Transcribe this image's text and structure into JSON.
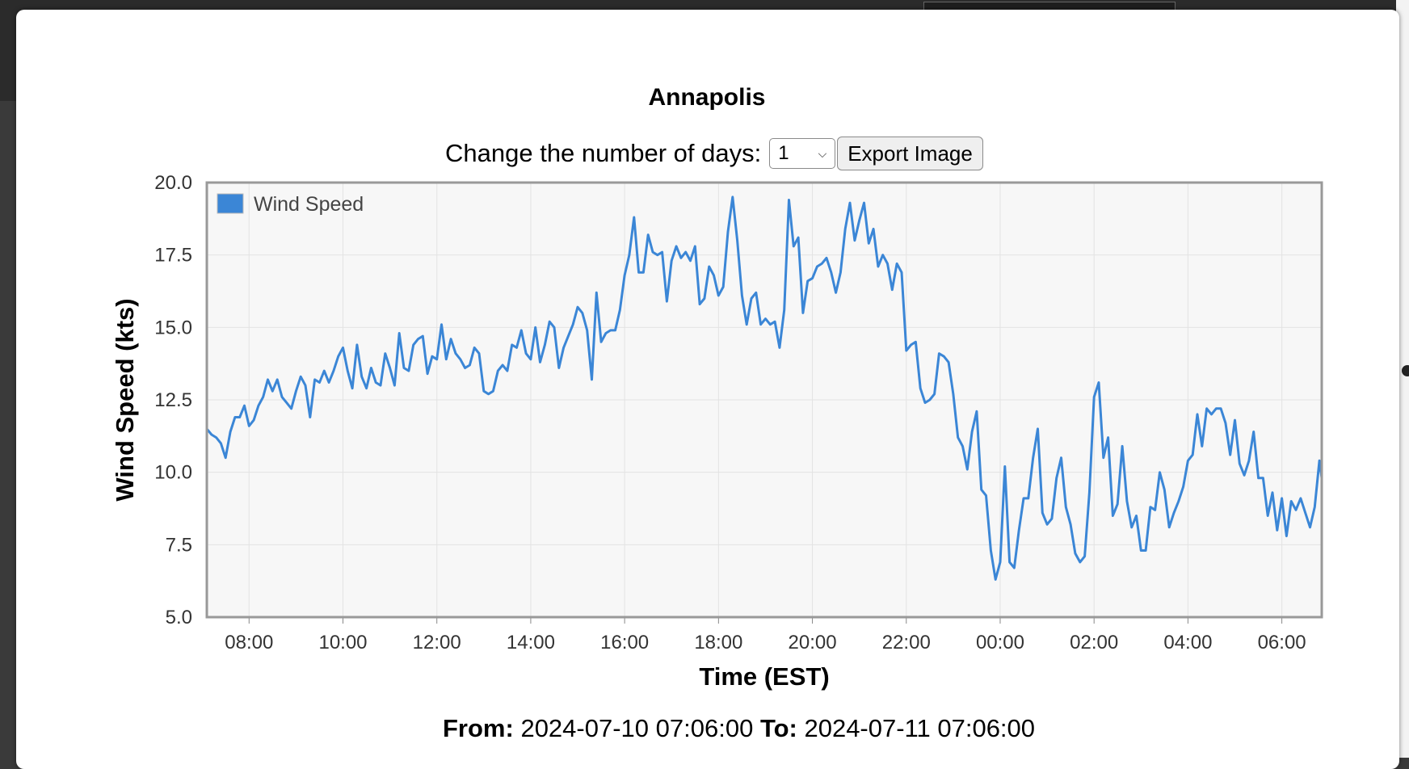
{
  "title": "Annapolis",
  "controls": {
    "days_label": "Change the number of days:",
    "days_value": "1",
    "export_label": "Export Image"
  },
  "range": {
    "from_label": "From:",
    "from_value": "2024-07-10 07:06:00",
    "to_label": "To:",
    "to_value": "2024-07-11 07:06:00"
  },
  "colors": {
    "series": "#3b86d6",
    "plot_bg": "#f7f7f7",
    "frame": "#999999"
  },
  "chart_data": {
    "type": "line",
    "xlabel": "Time (EST)",
    "ylabel": "Wind Speed (kts)",
    "ylim": [
      5.0,
      20.0
    ],
    "yticks": [
      "5.0",
      "7.5",
      "10.0",
      "12.5",
      "15.0",
      "17.5",
      "20.0"
    ],
    "xlim": [
      "07:06",
      "06:51"
    ],
    "xticks": [
      "08:00",
      "10:00",
      "12:00",
      "14:00",
      "16:00",
      "18:00",
      "20:00",
      "22:00",
      "00:00",
      "02:00",
      "04:00",
      "06:00"
    ],
    "grid": true,
    "legend_position": "top-left",
    "series": [
      {
        "name": "Wind Speed",
        "color": "#3b86d6",
        "x": [
          "07:06",
          "07:12",
          "07:18",
          "07:24",
          "07:30",
          "07:36",
          "07:42",
          "07:48",
          "07:54",
          "08:00",
          "08:06",
          "08:12",
          "08:18",
          "08:24",
          "08:30",
          "08:36",
          "08:42",
          "08:48",
          "08:54",
          "09:00",
          "09:06",
          "09:12",
          "09:18",
          "09:24",
          "09:30",
          "09:36",
          "09:42",
          "09:48",
          "09:54",
          "10:00",
          "10:06",
          "10:12",
          "10:18",
          "10:24",
          "10:30",
          "10:36",
          "10:42",
          "10:48",
          "10:54",
          "11:00",
          "11:06",
          "11:12",
          "11:18",
          "11:24",
          "11:30",
          "11:36",
          "11:42",
          "11:48",
          "11:54",
          "12:00",
          "12:06",
          "12:12",
          "12:18",
          "12:24",
          "12:30",
          "12:36",
          "12:42",
          "12:48",
          "12:54",
          "13:00",
          "13:06",
          "13:12",
          "13:18",
          "13:24",
          "13:30",
          "13:36",
          "13:42",
          "13:48",
          "13:54",
          "14:00",
          "14:06",
          "14:12",
          "14:18",
          "14:24",
          "14:30",
          "14:36",
          "14:42",
          "14:48",
          "14:54",
          "15:00",
          "15:06",
          "15:12",
          "15:18",
          "15:24",
          "15:30",
          "15:36",
          "15:42",
          "15:48",
          "15:54",
          "16:00",
          "16:06",
          "16:12",
          "16:18",
          "16:24",
          "16:30",
          "16:36",
          "16:42",
          "16:48",
          "16:54",
          "17:00",
          "17:06",
          "17:12",
          "17:18",
          "17:24",
          "17:30",
          "17:36",
          "17:42",
          "17:48",
          "17:54",
          "18:00",
          "18:06",
          "18:12",
          "18:18",
          "18:24",
          "18:30",
          "18:36",
          "18:42",
          "18:48",
          "18:54",
          "19:00",
          "19:06",
          "19:12",
          "19:18",
          "19:24",
          "19:30",
          "19:36",
          "19:42",
          "19:48",
          "19:54",
          "20:00",
          "20:06",
          "20:12",
          "20:18",
          "20:24",
          "20:30",
          "20:36",
          "20:42",
          "20:48",
          "20:54",
          "21:00",
          "21:06",
          "21:12",
          "21:18",
          "21:24",
          "21:30",
          "21:36",
          "21:42",
          "21:48",
          "21:54",
          "22:00",
          "22:06",
          "22:12",
          "22:18",
          "22:24",
          "22:30",
          "22:36",
          "22:42",
          "22:48",
          "22:54",
          "23:00",
          "23:06",
          "23:12",
          "23:18",
          "23:24",
          "23:30",
          "23:36",
          "23:42",
          "23:48",
          "23:54",
          "00:00",
          "00:06",
          "00:12",
          "00:18",
          "00:24",
          "00:30",
          "00:36",
          "00:42",
          "00:48",
          "00:54",
          "01:00",
          "01:06",
          "01:12",
          "01:18",
          "01:24",
          "01:30",
          "01:36",
          "01:42",
          "01:48",
          "01:54",
          "02:00",
          "02:06",
          "02:12",
          "02:18",
          "02:24",
          "02:30",
          "02:36",
          "02:42",
          "02:48",
          "02:54",
          "03:00",
          "03:06",
          "03:12",
          "03:18",
          "03:24",
          "03:30",
          "03:36",
          "03:42",
          "03:48",
          "03:54",
          "04:00",
          "04:06",
          "04:12",
          "04:18",
          "04:24",
          "04:30",
          "04:36",
          "04:42",
          "04:48",
          "04:54",
          "05:00",
          "05:06",
          "05:12",
          "05:18",
          "05:24",
          "05:30",
          "05:36",
          "05:42",
          "05:48",
          "05:54",
          "06:00",
          "06:06",
          "06:12",
          "06:18",
          "06:24",
          "06:30",
          "06:36",
          "06:42",
          "06:48",
          "06:51"
        ],
        "values": [
          11.5,
          11.3,
          11.2,
          11.0,
          10.5,
          11.4,
          11.9,
          11.9,
          12.3,
          11.6,
          11.8,
          12.3,
          12.6,
          13.2,
          12.8,
          13.2,
          12.6,
          12.4,
          12.2,
          12.8,
          13.3,
          13.0,
          11.9,
          13.2,
          13.1,
          13.5,
          13.1,
          13.5,
          14.0,
          14.3,
          13.5,
          12.9,
          14.4,
          13.3,
          12.9,
          13.6,
          13.1,
          13.0,
          14.1,
          13.6,
          13.0,
          14.8,
          13.6,
          13.5,
          14.4,
          14.6,
          14.7,
          13.4,
          14.0,
          13.9,
          15.1,
          13.9,
          14.6,
          14.1,
          13.9,
          13.6,
          13.7,
          14.3,
          14.1,
          12.8,
          12.7,
          12.8,
          13.5,
          13.7,
          13.5,
          14.4,
          14.3,
          14.9,
          14.1,
          13.9,
          15.0,
          13.8,
          14.4,
          15.2,
          15.0,
          13.6,
          14.3,
          14.7,
          15.1,
          15.7,
          15.5,
          14.9,
          13.2,
          16.2,
          14.5,
          14.8,
          14.9,
          14.9,
          15.6,
          16.8,
          17.5,
          18.8,
          16.9,
          16.9,
          18.2,
          17.6,
          17.5,
          17.6,
          15.9,
          17.3,
          17.8,
          17.4,
          17.6,
          17.3,
          17.8,
          15.8,
          16.0,
          17.1,
          16.8,
          16.1,
          16.4,
          18.3,
          19.5,
          18.0,
          16.1,
          15.1,
          16.0,
          16.2,
          15.1,
          15.3,
          15.1,
          15.2,
          14.3,
          15.6,
          19.4,
          17.8,
          18.1,
          15.5,
          16.6,
          16.7,
          17.1,
          17.2,
          17.4,
          16.9,
          16.2,
          16.9,
          18.4,
          19.3,
          18.0,
          18.7,
          19.3,
          17.9,
          18.4,
          17.1,
          17.5,
          17.2,
          16.3,
          17.2,
          16.9,
          14.2,
          14.4,
          14.5,
          12.9,
          12.4,
          12.5,
          12.7,
          14.1,
          14.0,
          13.8,
          12.7,
          11.2,
          10.9,
          10.1,
          11.4,
          12.1,
          9.4,
          9.2,
          7.3,
          6.3,
          6.9,
          10.2,
          6.9,
          6.7,
          8.0,
          9.1,
          9.1,
          10.5,
          11.5,
          8.6,
          8.2,
          8.4,
          9.8,
          10.5,
          8.8,
          8.2,
          7.2,
          6.9,
          7.1,
          9.3,
          12.6,
          13.1,
          10.5,
          11.2,
          8.5,
          8.9,
          10.9,
          9.0,
          8.1,
          8.5,
          7.3,
          7.3,
          8.8,
          8.7,
          10.0,
          9.4,
          8.1,
          8.6,
          9.0,
          9.5,
          10.4,
          10.6,
          12.0,
          10.9,
          12.2,
          12.0,
          12.2,
          12.2,
          11.7,
          10.6,
          11.8,
          10.3,
          9.9,
          10.4,
          11.4,
          9.8,
          9.8,
          8.5,
          9.3,
          8.0,
          9.1,
          7.8,
          9.0,
          8.7,
          9.1,
          8.6,
          8.1,
          8.8,
          10.4,
          9.8
        ]
      }
    ]
  }
}
